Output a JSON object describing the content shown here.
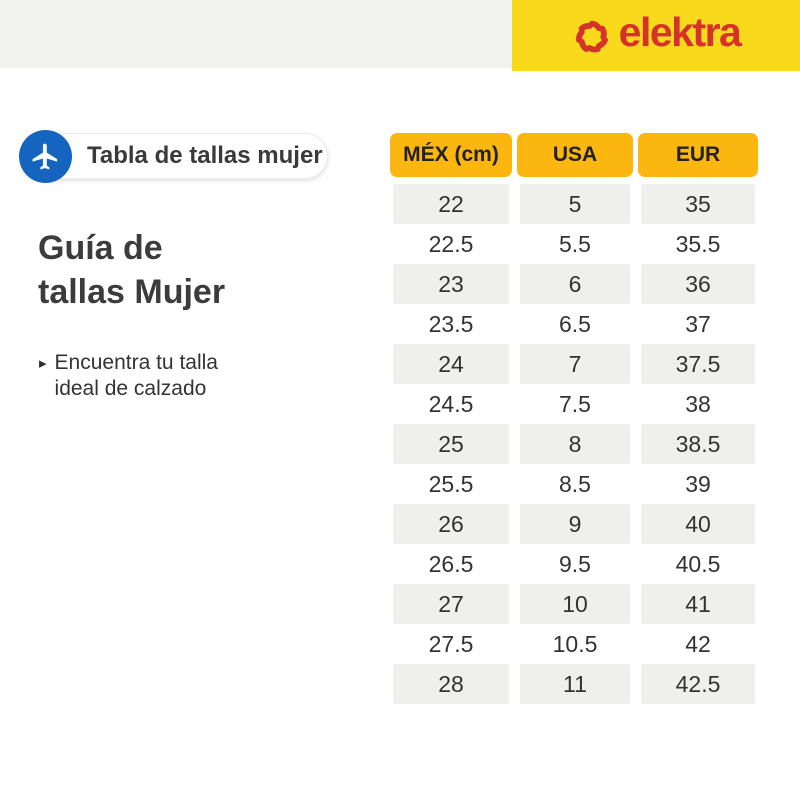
{
  "banner": {
    "brand": "elektra"
  },
  "badge": {
    "label": "Tabla de tallas mujer",
    "icon": "airplane-icon"
  },
  "intro": {
    "title_line1": "Guía de",
    "title_line2": "tallas Mujer",
    "bullet_line1": "Encuentra tu talla",
    "bullet_line2": "ideal de calzado"
  },
  "size_table": {
    "columns": [
      "MÉX (cm)",
      "USA",
      "EUR"
    ],
    "rows": [
      [
        "22",
        "5",
        "35"
      ],
      [
        "22.5",
        "5.5",
        "35.5"
      ],
      [
        "23",
        "6",
        "36"
      ],
      [
        "23.5",
        "6.5",
        "37"
      ],
      [
        "24",
        "7",
        "37.5"
      ],
      [
        "24.5",
        "7.5",
        "38"
      ],
      [
        "25",
        "8",
        "38.5"
      ],
      [
        "25.5",
        "8.5",
        "39"
      ],
      [
        "26",
        "9",
        "40"
      ],
      [
        "26.5",
        "9.5",
        "40.5"
      ],
      [
        "27",
        "10",
        "41"
      ],
      [
        "27.5",
        "10.5",
        "42"
      ],
      [
        "28",
        "11",
        "42.5"
      ]
    ]
  },
  "colors": {
    "banner_yellow": "#F8D91C",
    "banner_gray": "#F1F1F0",
    "brand_red": "#D5322B",
    "table_header_yellow": "#FBB60F",
    "badge_blue": "#1565C0",
    "row_gray": "#EFEFEE",
    "text_dark": "#333333"
  }
}
